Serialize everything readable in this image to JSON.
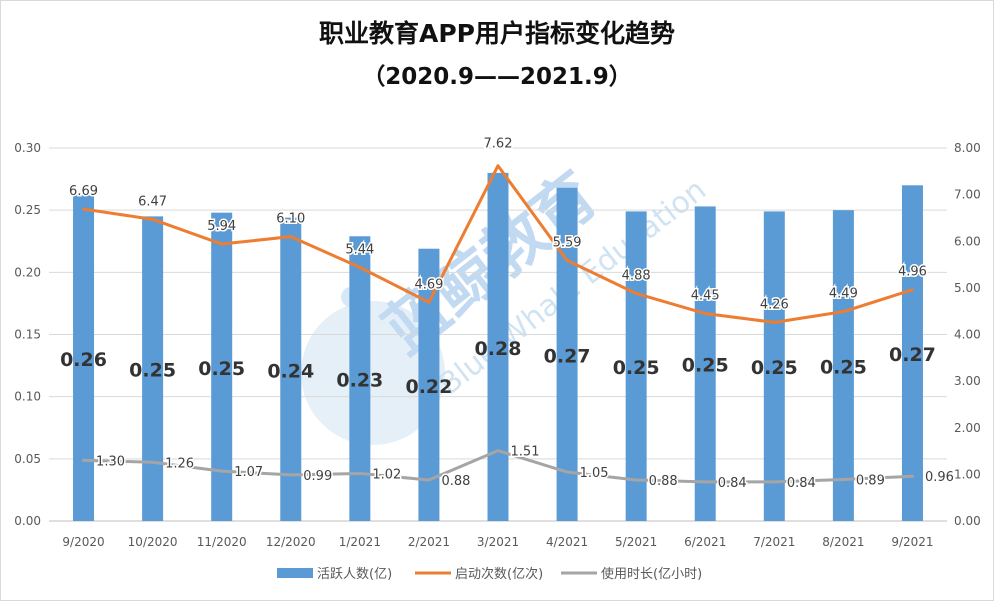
{
  "chart_data": {
    "type": "bar+line",
    "title": "职业教育APP用户指标变化趋势",
    "subtitle": "（2020.9——2021.9）",
    "categories": [
      "9/2020",
      "10/2020",
      "11/2020",
      "12/2020",
      "1/2021",
      "2/2021",
      "3/2021",
      "4/2021",
      "5/2021",
      "6/2021",
      "7/2021",
      "8/2021",
      "9/2021"
    ],
    "left_axis": {
      "min": 0,
      "max": 0.3,
      "step": 0.05,
      "decimals": 2
    },
    "right_axis": {
      "min": 0,
      "max": 8.0,
      "step": 1.0,
      "decimals": 2
    },
    "series": [
      {
        "name": "活跃人数(亿)",
        "kind": "bar",
        "axis": "left",
        "color": "#5B9BD5",
        "values": [
          0.262,
          0.245,
          0.248,
          0.244,
          0.229,
          0.219,
          0.28,
          0.268,
          0.249,
          0.253,
          0.249,
          0.25,
          0.27
        ],
        "labels": [
          "0.26",
          "0.25",
          "0.25",
          "0.24",
          "0.23",
          "0.22",
          "0.28",
          "0.27",
          "0.25",
          "0.25",
          "0.25",
          "0.25",
          "0.27"
        ]
      },
      {
        "name": "启动次数(亿次)",
        "kind": "line",
        "axis": "right",
        "color": "#ED7D31",
        "values": [
          6.69,
          6.47,
          5.94,
          6.1,
          5.44,
          4.69,
          7.62,
          5.59,
          4.88,
          4.45,
          4.26,
          4.49,
          4.96
        ],
        "labels": [
          "6.69",
          "6.47",
          "5.94",
          "6.10",
          "5.44",
          "4.69",
          "7.62",
          "5.59",
          "4.88",
          "4.45",
          "4.26",
          "4.49",
          "4.96"
        ]
      },
      {
        "name": "使用时长(亿小时)",
        "kind": "line",
        "axis": "right",
        "color": "#A5A5A5",
        "values": [
          1.3,
          1.26,
          1.07,
          0.99,
          1.02,
          0.88,
          1.51,
          1.05,
          0.88,
          0.84,
          0.84,
          0.89,
          0.96
        ],
        "labels": [
          "1.30",
          "1.26",
          "1.07",
          "0.99",
          "1.02",
          "0.88",
          "1.51",
          "1.05",
          "0.88",
          "0.84",
          "0.84",
          "0.89",
          "0.96"
        ]
      }
    ],
    "grid": true,
    "legend_position": "bottom-center"
  },
  "watermark": {
    "cn": "蓝鲸教育",
    "en": "Blue Whale Education"
  }
}
